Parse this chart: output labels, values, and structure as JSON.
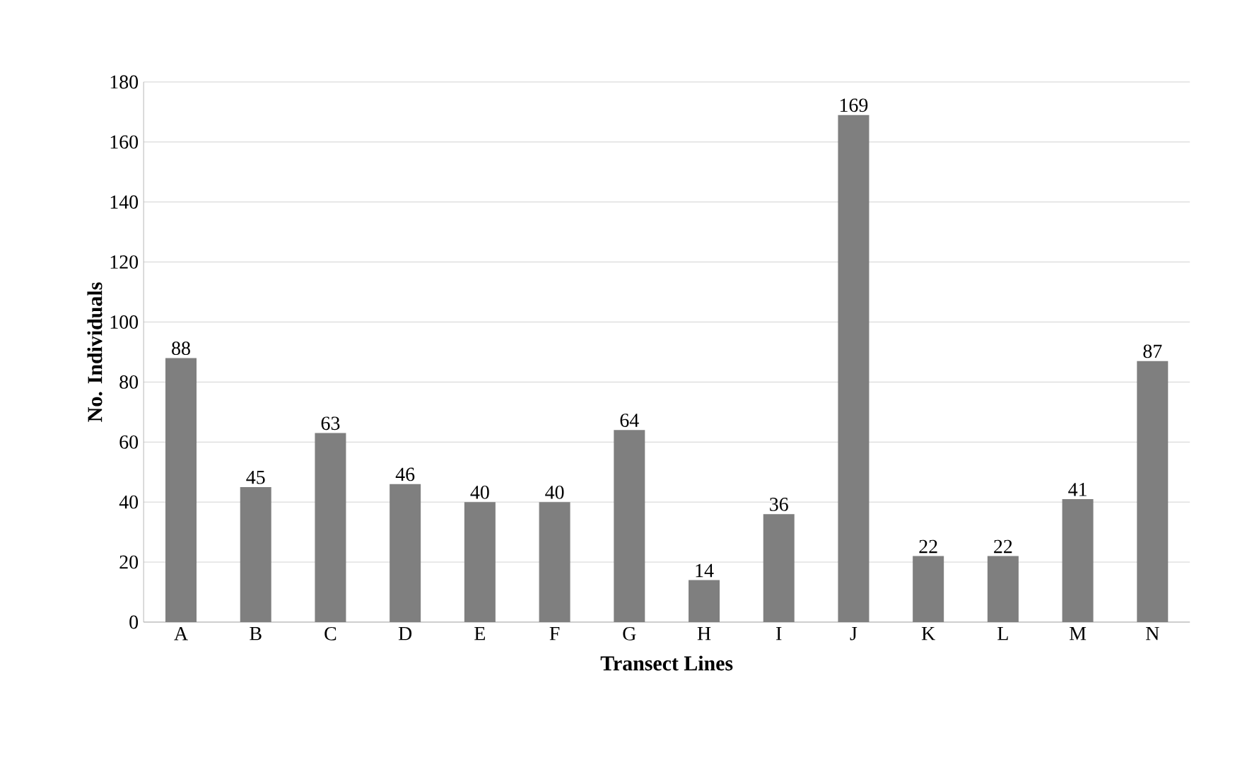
{
  "chart_data": {
    "type": "bar",
    "xlabel": "Transect Lines",
    "ylabel": "No. Individuals",
    "categories": [
      "A",
      "B",
      "C",
      "D",
      "E",
      "F",
      "G",
      "H",
      "I",
      "J",
      "K",
      "L",
      "M",
      "N"
    ],
    "values": [
      88,
      45,
      63,
      46,
      40,
      40,
      64,
      14,
      36,
      169,
      22,
      22,
      41,
      87
    ],
    "color": "#7f7f7f",
    "ylim": [
      0,
      180
    ],
    "yticks": [
      0,
      20,
      40,
      60,
      80,
      100,
      120,
      140,
      160,
      180
    ],
    "grid": "y",
    "data_labels": true
  }
}
